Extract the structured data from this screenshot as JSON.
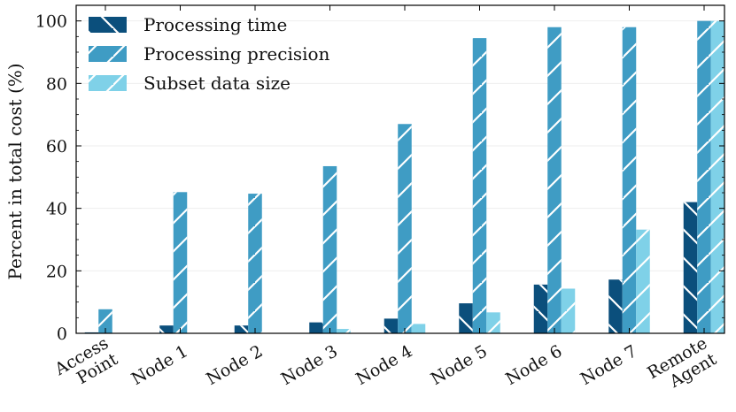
{
  "chart_data": {
    "type": "bar",
    "title": "",
    "xlabel": "",
    "ylabel": "Percent in total cost (%)",
    "ylim": [
      0,
      105
    ],
    "yticks": [
      0,
      20,
      40,
      60,
      80,
      100
    ],
    "grid": true,
    "legend_position": "top-left",
    "categories": [
      [
        "Access",
        "Point"
      ],
      [
        "Node 1"
      ],
      [
        "Node 2"
      ],
      [
        "Node 3"
      ],
      [
        "Node 4"
      ],
      [
        "Node 5"
      ],
      [
        "Node 6"
      ],
      [
        "Node 7"
      ],
      [
        "Remote",
        "Agent"
      ]
    ],
    "series": [
      {
        "name": "Processing time",
        "color": "#0b4f7c",
        "hatch": "backslash",
        "values": [
          0.3,
          2.5,
          2.5,
          3.5,
          4.7,
          9.6,
          15.6,
          17.2,
          42.0
        ]
      },
      {
        "name": "Processing precision",
        "color": "#3f9cc4",
        "hatch": "slash",
        "values": [
          7.7,
          45.2,
          44.7,
          53.5,
          67.0,
          94.5,
          98.0,
          98.0,
          100.0
        ]
      },
      {
        "name": "Subset data size",
        "color": "#7fd1e8",
        "hatch": "slash",
        "values": [
          0.0,
          0.0,
          0.0,
          1.4,
          3.0,
          6.7,
          14.3,
          33.2,
          100.0
        ]
      }
    ]
  }
}
